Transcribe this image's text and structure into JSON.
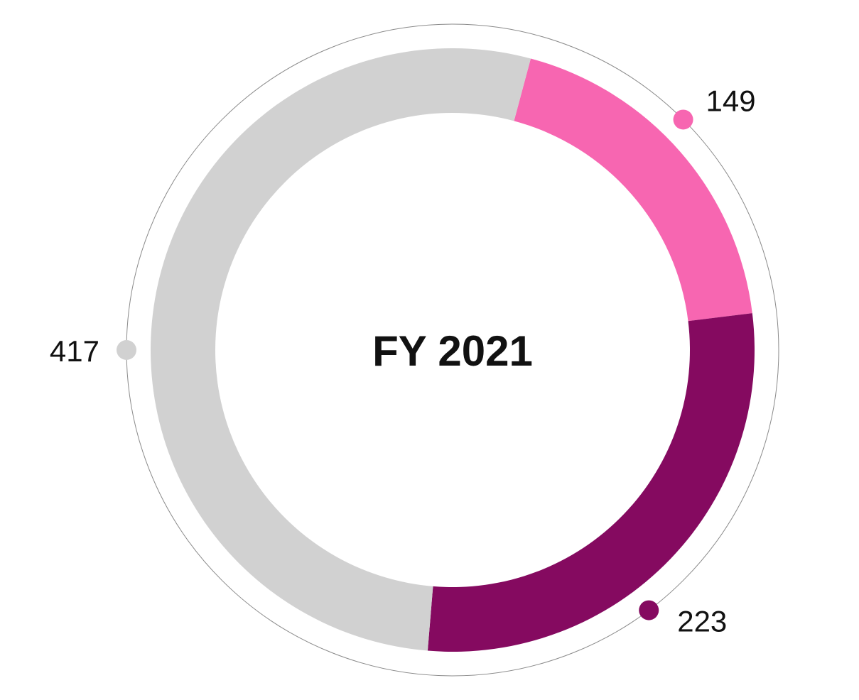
{
  "chart_data": {
    "type": "pie",
    "variant": "donut",
    "center_label": "FY 2021",
    "slices": [
      {
        "value": 149,
        "label": "149",
        "color": "#F766B1"
      },
      {
        "value": 223,
        "label": "223",
        "color": "#850A60"
      },
      {
        "value": 417,
        "label": "417",
        "color": "#D1D1D1"
      }
    ],
    "outer_ring": true,
    "legend": "none"
  }
}
